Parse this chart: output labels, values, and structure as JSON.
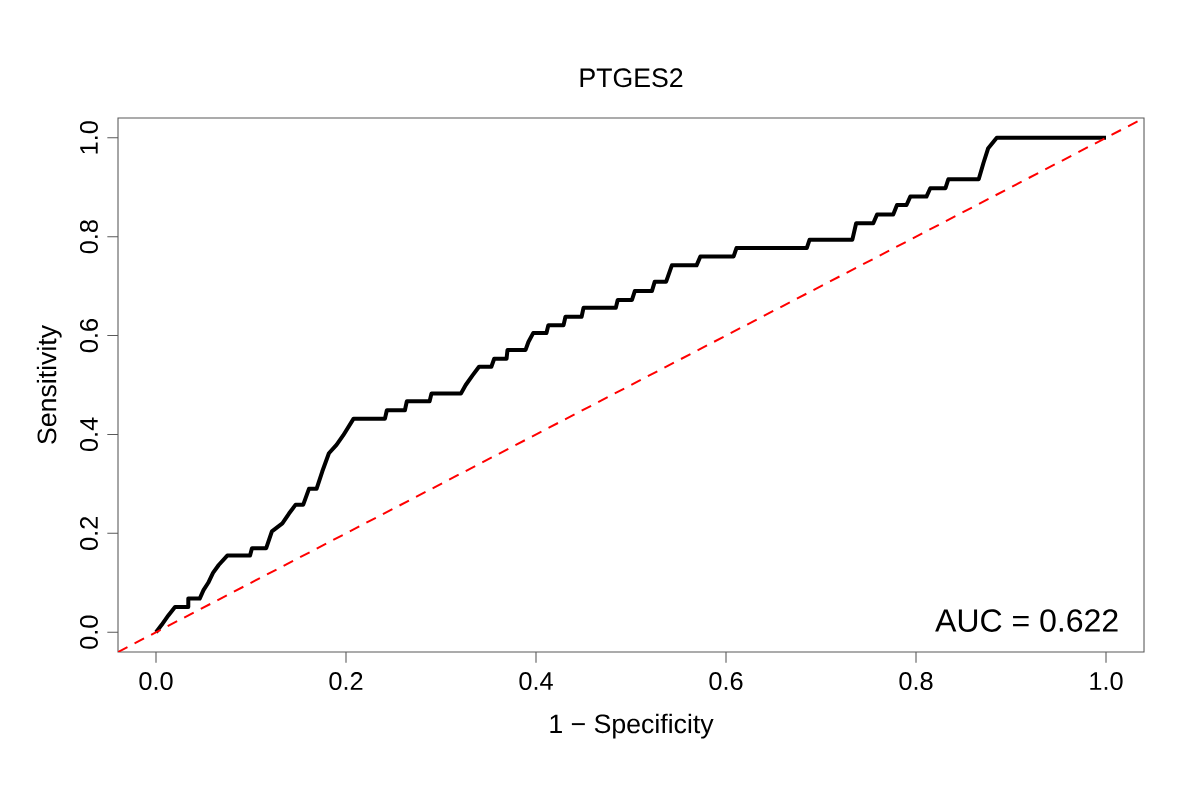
{
  "chart_data": {
    "type": "line",
    "title": "PTGES2",
    "xlabel": "1 − Specificity",
    "ylabel": "Sensitivity",
    "xlim": [
      -0.04,
      1.04
    ],
    "ylim": [
      -0.04,
      1.04
    ],
    "xticks": [
      {
        "value": 0,
        "label": "0.0"
      },
      {
        "value": 0.2,
        "label": "0.2"
      },
      {
        "value": 0.4,
        "label": "0.4"
      },
      {
        "value": 0.6,
        "label": "0.6"
      },
      {
        "value": 0.8,
        "label": "0.8"
      },
      {
        "value": 1,
        "label": "1.0"
      }
    ],
    "yticks": [
      {
        "value": 0,
        "label": "0.0"
      },
      {
        "value": 0.2,
        "label": "0.2"
      },
      {
        "value": 0.4,
        "label": "0.4"
      },
      {
        "value": 0.6,
        "label": "0.6"
      },
      {
        "value": 0.8,
        "label": "0.8"
      },
      {
        "value": 1,
        "label": "1.0"
      }
    ],
    "grid": false,
    "marker": "none",
    "annotations": [
      "AUC = 0.622"
    ],
    "series": [
      {
        "color": "#000000",
        "line_style": "solid",
        "x": [
          0,
          0.006,
          0.013,
          0.02,
          0.034,
          0.034,
          0.046,
          0.05,
          0.055,
          0.06,
          0.066,
          0.075,
          0.099,
          0.101,
          0.116,
          0.122,
          0.133,
          0.14,
          0.147,
          0.155,
          0.161,
          0.169,
          0.175,
          0.182,
          0.19,
          0.197,
          0.208,
          0.241,
          0.243,
          0.262,
          0.264,
          0.288,
          0.29,
          0.321,
          0.326,
          0.333,
          0.34,
          0.353,
          0.356,
          0.369,
          0.37,
          0.389,
          0.392,
          0.397,
          0.411,
          0.413,
          0.429,
          0.431,
          0.448,
          0.45,
          0.484,
          0.486,
          0.501,
          0.504,
          0.522,
          0.525,
          0.537,
          0.543,
          0.569,
          0.573,
          0.608,
          0.611,
          0.685,
          0.688,
          0.733,
          0.737,
          0.755,
          0.759,
          0.776,
          0.78,
          0.79,
          0.794,
          0.811,
          0.815,
          0.831,
          0.834,
          0.866,
          0.871,
          0.876,
          0.885,
          1.0
        ],
        "values": [
          0,
          0.015,
          0.034,
          0.051,
          0.051,
          0.068,
          0.068,
          0.085,
          0.1,
          0.12,
          0.136,
          0.155,
          0.155,
          0.17,
          0.17,
          0.204,
          0.22,
          0.24,
          0.258,
          0.258,
          0.29,
          0.29,
          0.325,
          0.362,
          0.379,
          0.398,
          0.432,
          0.432,
          0.449,
          0.449,
          0.467,
          0.467,
          0.483,
          0.483,
          0.5,
          0.519,
          0.537,
          0.537,
          0.553,
          0.553,
          0.571,
          0.571,
          0.587,
          0.605,
          0.605,
          0.621,
          0.621,
          0.638,
          0.638,
          0.656,
          0.656,
          0.672,
          0.672,
          0.69,
          0.69,
          0.709,
          0.709,
          0.742,
          0.742,
          0.76,
          0.76,
          0.777,
          0.777,
          0.794,
          0.794,
          0.827,
          0.827,
          0.845,
          0.845,
          0.864,
          0.864,
          0.881,
          0.881,
          0.898,
          0.898,
          0.916,
          0.916,
          0.949,
          0.979,
          1.0,
          1.0
        ]
      },
      {
        "color": "#ff0000",
        "line_style": "dashed",
        "x": [
          -0.04,
          1.04
        ],
        "values": [
          -0.04,
          1.04
        ]
      }
    ]
  }
}
